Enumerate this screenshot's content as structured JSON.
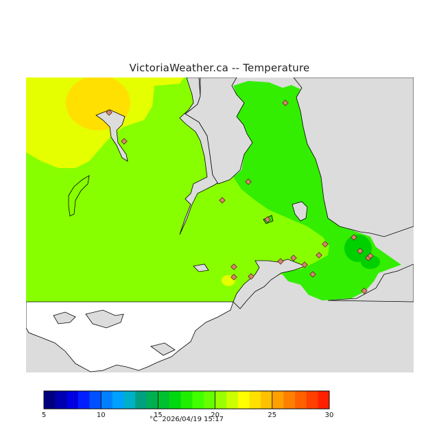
{
  "title": "VictoriaWeather.ca -- Temperature",
  "colors": {
    "no_data": "#dcdcdc",
    "land_outline": "#000000",
    "station_fill": "#d4876a",
    "station_stroke": "#5a2a20",
    "warm_zone": "#ffe000",
    "yellow_zone": "#e6ff00",
    "main_green": "#88ff00",
    "green": "#33ee00",
    "darker_green": "#00d000"
  },
  "colorbar": {
    "min": 5,
    "max": 30,
    "tick_values": [
      5,
      10,
      15,
      20,
      25,
      30
    ],
    "tick_labels": [
      "5",
      "10",
      "15",
      "20",
      "25",
      "30"
    ],
    "colors": [
      "#00007f",
      "#0000b0",
      "#0000e0",
      "#0020ff",
      "#0050ff",
      "#0080ff",
      "#00a0ff",
      "#00b0c8",
      "#00a080",
      "#00b050",
      "#00c030",
      "#00d810",
      "#20ee00",
      "#40ff00",
      "#66ff00",
      "#99ff00",
      "#ccff00",
      "#ffff00",
      "#ffe000",
      "#ffc000",
      "#ffa000",
      "#ff8000",
      "#ff6000",
      "#ff4000",
      "#ff2000"
    ]
  },
  "caption": {
    "unit": "°C",
    "timestamp": "2026/04/19 15:17"
  },
  "stations": [
    {
      "id": "s1"
    },
    {
      "id": "s2"
    },
    {
      "id": "s3"
    },
    {
      "id": "s4"
    },
    {
      "id": "s5"
    },
    {
      "id": "s6"
    },
    {
      "id": "s7"
    },
    {
      "id": "s8"
    },
    {
      "id": "s9"
    },
    {
      "id": "s10"
    },
    {
      "id": "s11"
    },
    {
      "id": "s12"
    },
    {
      "id": "s13"
    },
    {
      "id": "s14"
    },
    {
      "id": "s15"
    },
    {
      "id": "s16"
    },
    {
      "id": "s17"
    },
    {
      "id": "s18"
    },
    {
      "id": "s19"
    },
    {
      "id": "s20"
    }
  ]
}
